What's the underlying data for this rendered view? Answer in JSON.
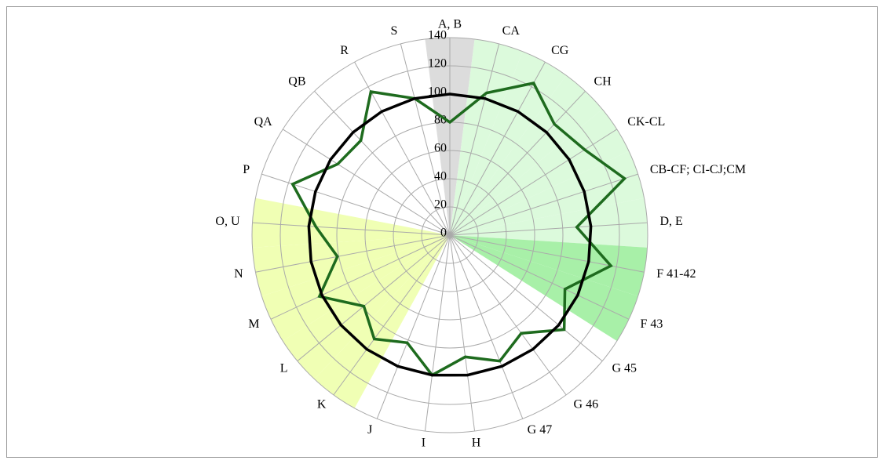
{
  "chart_data": {
    "type": "radar",
    "categories": [
      "A, B",
      "CA",
      "CG",
      "CH",
      "CK-CL",
      "CB-CF; CI-CJ;CM",
      "D, E",
      "F 41-42",
      "F 43",
      "G 45",
      "G 46",
      "G 47",
      "H",
      "I",
      "J",
      "K",
      "L",
      "M",
      "N",
      "O, U",
      "P",
      "QA",
      "QB",
      "R",
      "S"
    ],
    "series": [
      {
        "color": "#1e6b1e",
        "values": [
          80,
          104,
          123,
          108,
          113,
          130,
          90,
          116,
          90,
          105,
          86,
          96,
          87,
          100,
          82,
          91,
          79,
          102,
          81,
          95,
          117,
          94,
          92,
          116,
          100
        ]
      },
      {
        "color": "#000000",
        "values": [
          100,
          100,
          100,
          100,
          100,
          100,
          100,
          100,
          100,
          100,
          100,
          100,
          100,
          100,
          100,
          100,
          100,
          100,
          100,
          100,
          100,
          100,
          100,
          100,
          100
        ]
      }
    ],
    "sector_colors": [
      "#dcdcdc",
      "#dcfadc",
      "#dcfadc",
      "#dcfadc",
      "#dcfadc",
      "#dcfadc",
      "#dcfadc",
      "#a8f0a8",
      "#a8f0a8",
      null,
      null,
      null,
      null,
      null,
      null,
      "#f0ffb4",
      "#f0ffb4",
      "#f0ffb4",
      "#f0ffb4",
      "#f0ffb4",
      null,
      null,
      null,
      null,
      null
    ],
    "rlim": [
      0,
      140
    ],
    "rticks": [
      0,
      20,
      40,
      60,
      80,
      100,
      120,
      140
    ],
    "grid": true
  }
}
